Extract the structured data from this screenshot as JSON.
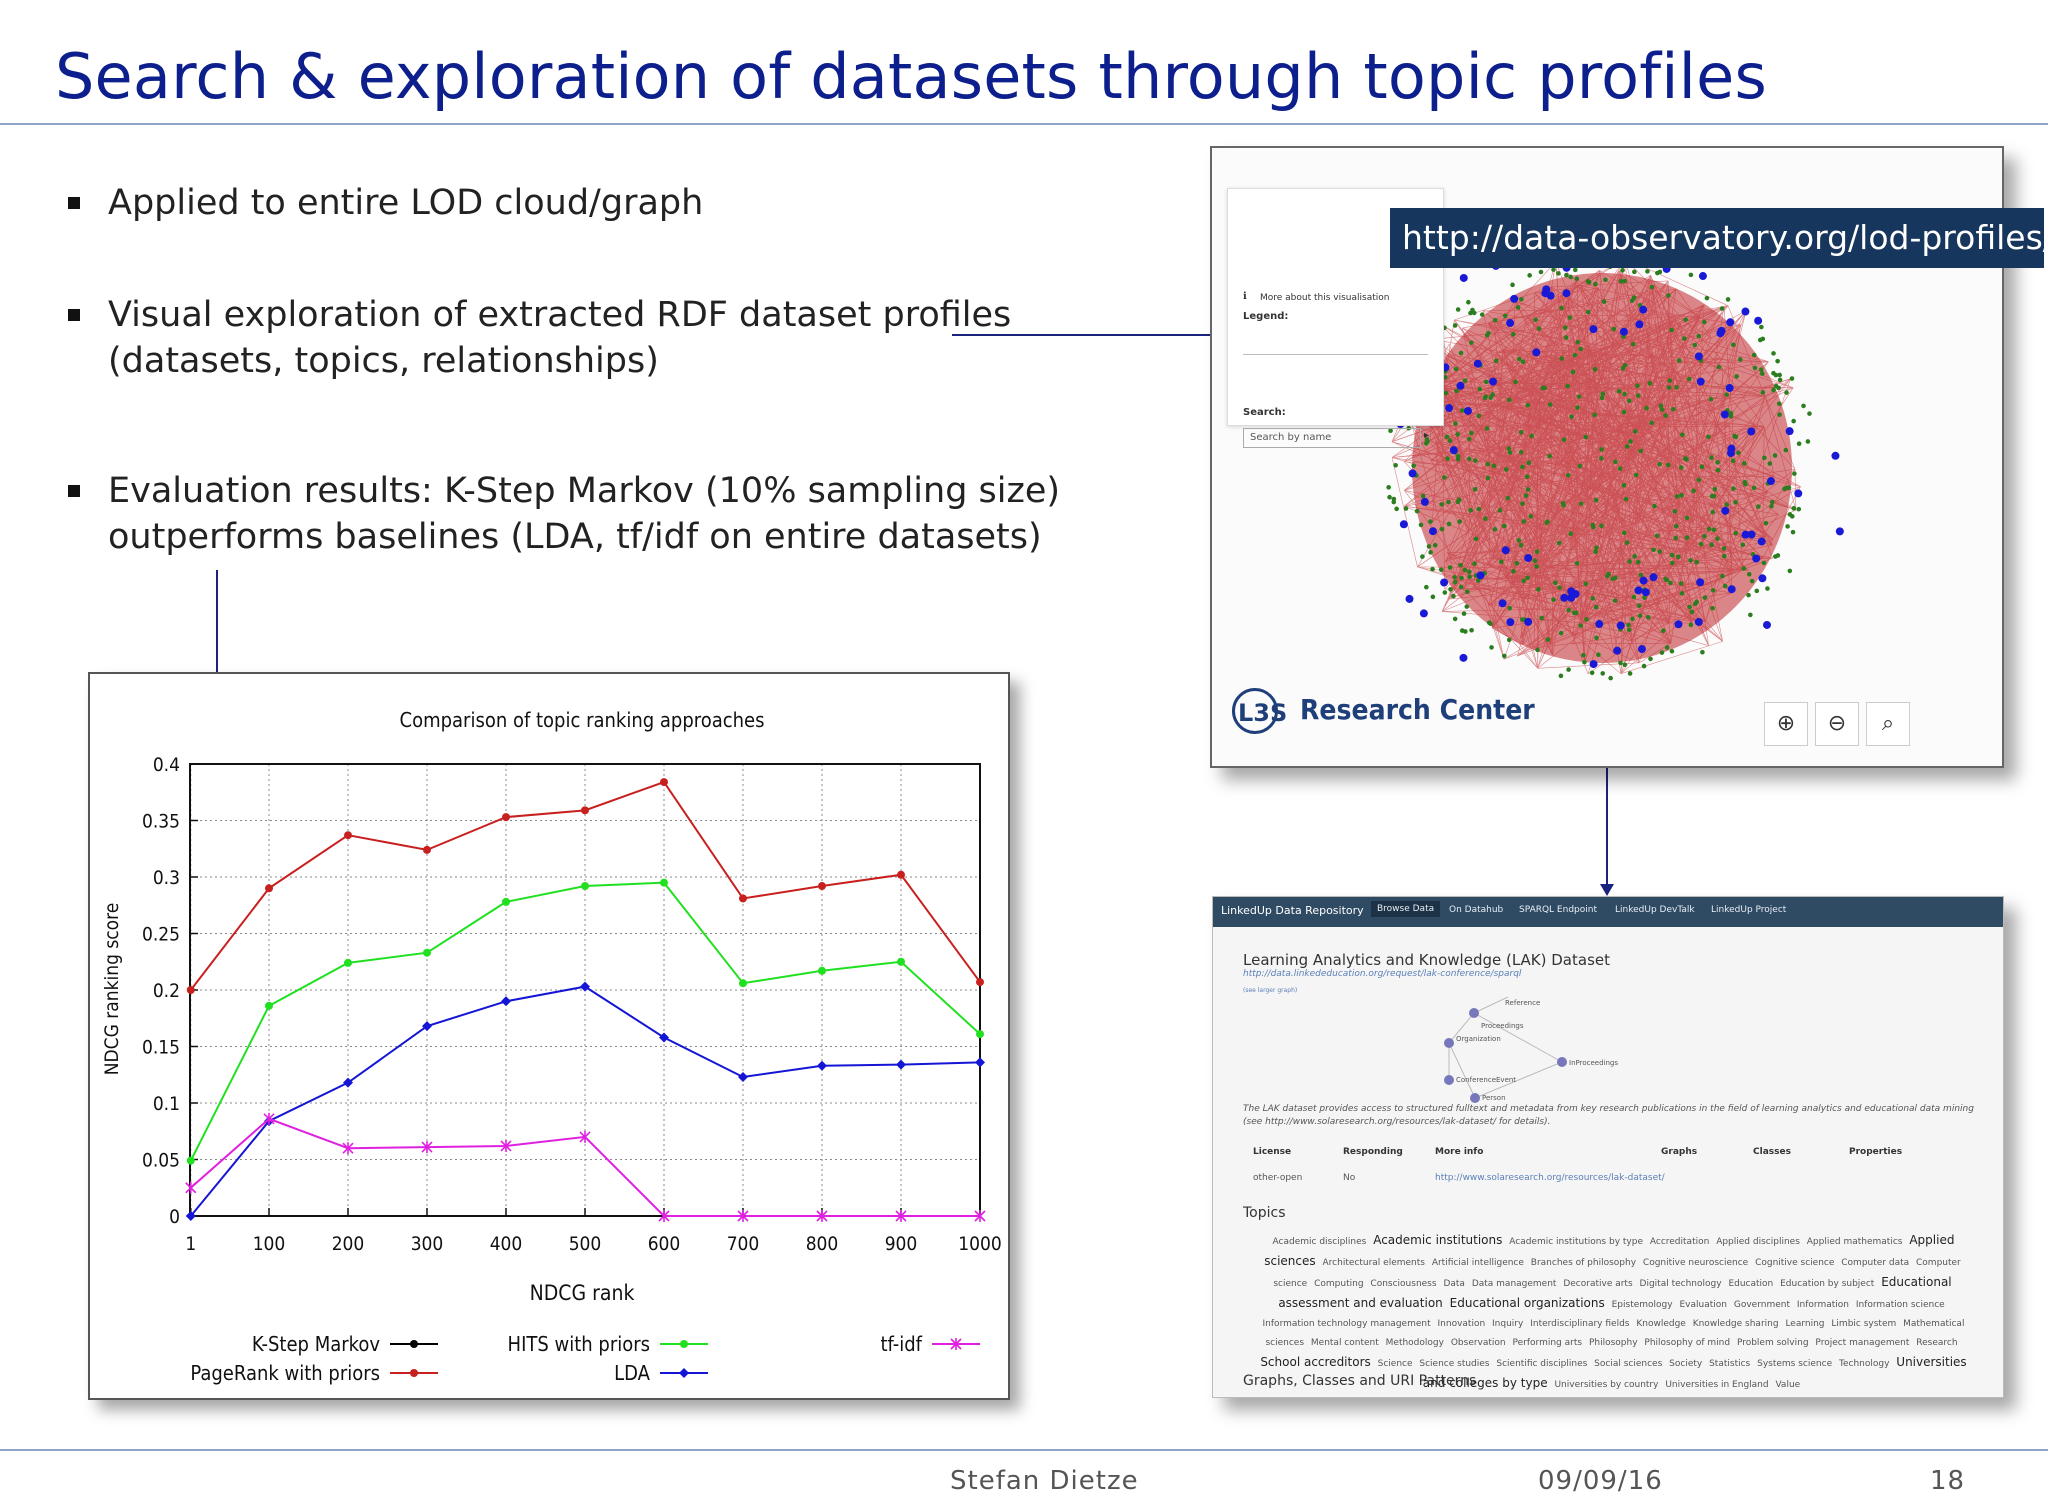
{
  "slide": {
    "title": "Search & exploration of datasets through topic profiles",
    "bullets": [
      {
        "lines": [
          "Applied to entire LOD cloud/graph"
        ]
      },
      {
        "lines": [
          "Visual exploration of extracted RDF dataset profiles",
          "(datasets, topics, relationships)"
        ]
      },
      {
        "lines": [
          "Evaluation results: K-Step Markov (10% sampling size)",
          "outperforms baselines (LDA, tf/idf on entire datasets)"
        ]
      }
    ],
    "url": "http://data-observatory.org/lod-profiles/",
    "footer": {
      "author": "Stefan Dietze",
      "date": "09/09/16",
      "page": "18"
    }
  },
  "network_screenshot": {
    "info": "More about this visualisation",
    "legend_label": "Legend:",
    "search_label": "Search:",
    "search_placeholder": "Search by name",
    "brand": "Research Center",
    "logo_text": "L3S",
    "colors": {
      "edges": "#c0262b",
      "topic_nodes": "#2b7d1f",
      "dataset_nodes": "#1a1ad6"
    },
    "zoom_buttons": [
      "zoom-in-icon",
      "zoom-out-icon",
      "zoom-reset-icon"
    ]
  },
  "repo_screenshot": {
    "nav": [
      "LinkedUp Data Repository",
      "Browse Data",
      "On Datahub",
      "SPARQL Endpoint",
      "LinkedUp DevTalk",
      "LinkedUp Project"
    ],
    "title": "Learning Analytics and Knowledge (LAK) Dataset",
    "link": "http://data.linkededucation.org/request/lak-conference/sparql",
    "graph_link": "(see larger graph)",
    "graph_nodes": [
      "Reference",
      "Proceedings",
      "Organization",
      "InProceedings",
      "ConferenceEvent",
      "Person"
    ],
    "description": "The LAK dataset provides access to structured fulltext and metadata from key research publications in the field of learning analytics and educational data mining (see http://www.solaresearch.org/resources/lak-dataset/ for details).",
    "table_headers": [
      "License",
      "Responding",
      "More info",
      "Graphs",
      "Classes",
      "Properties"
    ],
    "table_values": [
      "other-open",
      "No",
      "http://www.solaresearch.org/resources/lak-dataset/"
    ],
    "topics_heading": "Topics",
    "topics": [
      {
        "t": "Academic disciplines"
      },
      {
        "t": "Academic institutions",
        "big": true
      },
      {
        "t": "Academic institutions by type"
      },
      {
        "t": "Accreditation"
      },
      {
        "t": "Applied disciplines"
      },
      {
        "t": "Applied mathematics"
      },
      {
        "t": "Applied sciences",
        "big": true
      },
      {
        "t": "Architectural elements"
      },
      {
        "t": "Artificial intelligence"
      },
      {
        "t": "Branches of philosophy"
      },
      {
        "t": "Cognitive neuroscience"
      },
      {
        "t": "Cognitive science"
      },
      {
        "t": "Computer data"
      },
      {
        "t": "Computer science"
      },
      {
        "t": "Computing"
      },
      {
        "t": "Consciousness"
      },
      {
        "t": "Data"
      },
      {
        "t": "Data management"
      },
      {
        "t": "Decorative arts"
      },
      {
        "t": "Digital technology"
      },
      {
        "t": "Education"
      },
      {
        "t": "Education by subject"
      },
      {
        "t": "Educational assessment and evaluation",
        "big": true
      },
      {
        "t": "Educational organizations",
        "big": true
      },
      {
        "t": "Epistemology"
      },
      {
        "t": "Evaluation"
      },
      {
        "t": "Government"
      },
      {
        "t": "Information"
      },
      {
        "t": "Information science"
      },
      {
        "t": "Information technology management"
      },
      {
        "t": "Innovation"
      },
      {
        "t": "Inquiry"
      },
      {
        "t": "Interdisciplinary fields"
      },
      {
        "t": "Knowledge"
      },
      {
        "t": "Knowledge sharing"
      },
      {
        "t": "Learning"
      },
      {
        "t": "Limbic system"
      },
      {
        "t": "Mathematical sciences"
      },
      {
        "t": "Mental content"
      },
      {
        "t": "Methodology"
      },
      {
        "t": "Observation"
      },
      {
        "t": "Performing arts"
      },
      {
        "t": "Philosophy"
      },
      {
        "t": "Philosophy of mind"
      },
      {
        "t": "Problem solving"
      },
      {
        "t": "Project management"
      },
      {
        "t": "Research"
      },
      {
        "t": "School accreditors",
        "big": true
      },
      {
        "t": "Science"
      },
      {
        "t": "Science studies"
      },
      {
        "t": "Scientific disciplines"
      },
      {
        "t": "Social sciences"
      },
      {
        "t": "Society"
      },
      {
        "t": "Statistics"
      },
      {
        "t": "Systems science"
      },
      {
        "t": "Technology"
      },
      {
        "t": "Universities and colleges by type",
        "big": true
      },
      {
        "t": "Universities by country"
      },
      {
        "t": "Universities in England"
      },
      {
        "t": "Value"
      }
    ],
    "bottom_heading": "Graphs, Classes and URI Patterns"
  },
  "chart_data": {
    "type": "line",
    "title": "Comparison of topic ranking approaches",
    "xlabel": "NDCG rank",
    "ylabel": "NDCG ranking score",
    "x": [
      1,
      100,
      200,
      300,
      400,
      500,
      600,
      700,
      800,
      900,
      1000
    ],
    "xticks": [
      "1",
      "100",
      "200",
      "300",
      "400",
      "500",
      "600",
      "700",
      "800",
      "900",
      "1000"
    ],
    "yticks": [
      "0",
      "0.05",
      "0.1",
      "0.15",
      "0.2",
      "0.25",
      "0.3",
      "0.35",
      "0.4"
    ],
    "ylim": [
      0,
      0.4
    ],
    "grid": true,
    "legend": "bottom",
    "series": [
      {
        "name": "K-Step Markov",
        "color": "#000000",
        "marker": "dot",
        "values": null
      },
      {
        "name": "PageRank with priors",
        "color": "#c8201e",
        "marker": "dot",
        "values": [
          0.2,
          0.29,
          0.337,
          0.324,
          0.353,
          0.359,
          0.384,
          0.281,
          0.292,
          0.302,
          0.207
        ]
      },
      {
        "name": "HITS with priors",
        "color": "#20e020",
        "marker": "dot",
        "values": [
          0.049,
          0.186,
          0.224,
          0.233,
          0.278,
          0.292,
          0.295,
          0.206,
          0.217,
          0.225,
          0.161
        ]
      },
      {
        "name": "LDA",
        "color": "#1515d5",
        "marker": "diamond",
        "values": [
          0.0,
          0.084,
          0.118,
          0.168,
          0.19,
          0.203,
          0.158,
          0.123,
          0.133,
          0.134,
          0.136
        ]
      },
      {
        "name": "tf-idf",
        "color": "#e020e0",
        "marker": "x",
        "values": [
          0.025,
          0.086,
          0.06,
          0.061,
          0.062,
          0.07,
          0.0,
          0.0,
          0.0,
          0.0,
          0.0
        ]
      }
    ]
  }
}
